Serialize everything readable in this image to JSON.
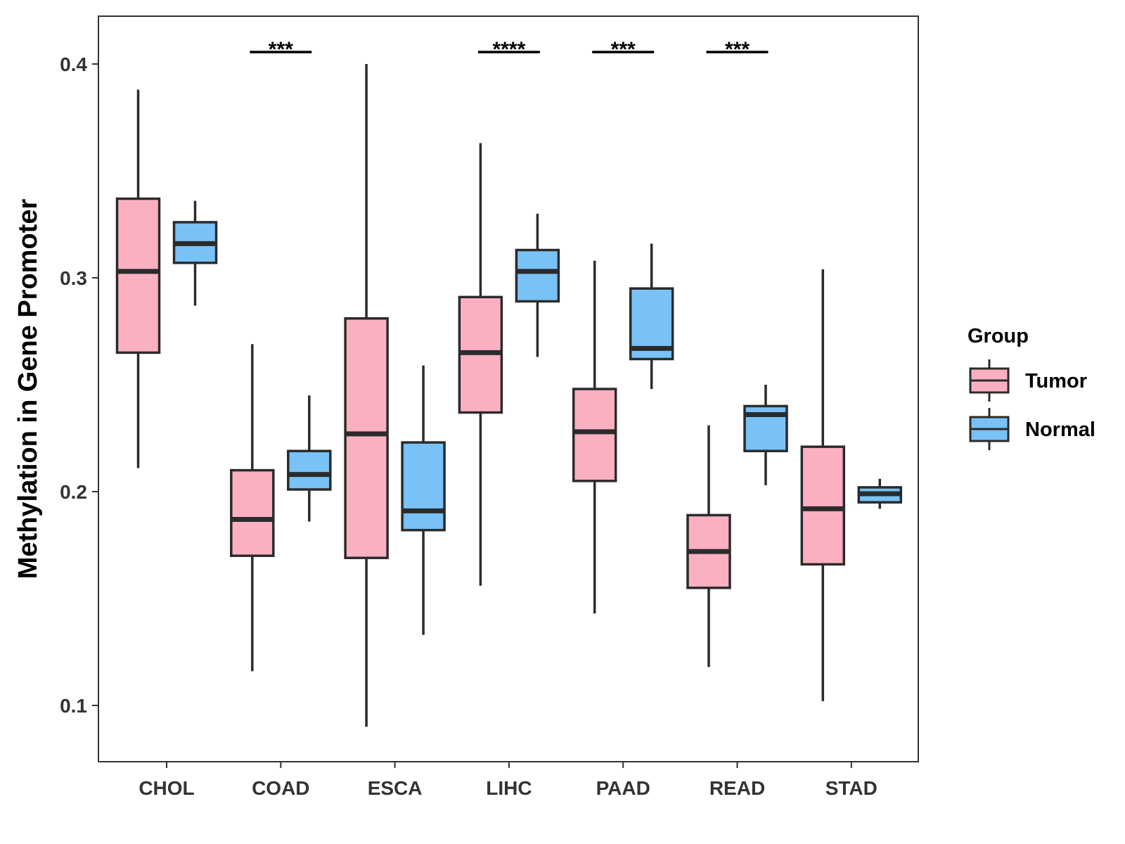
{
  "chart_data": {
    "type": "boxplot",
    "title": "",
    "xlabel": "",
    "ylabel": "Methylation in Gene Promoter",
    "ylim": [
      0.074,
      0.423
    ],
    "yticks": [
      0.1,
      0.2,
      0.3,
      0.4
    ],
    "ytick_labels": [
      "0.1",
      "0.2",
      "0.3",
      "0.4"
    ],
    "grid": false,
    "categories": [
      "CHOL",
      "COAD",
      "ESCA",
      "LIHC",
      "PAAD",
      "READ",
      "STAD"
    ],
    "legend": {
      "title": "Group",
      "position": "right",
      "entries": [
        {
          "label": "Tumor",
          "color": "#fbb0c2"
        },
        {
          "label": "Normal",
          "color": "#78c2f7"
        }
      ]
    },
    "series": [
      {
        "name": "Tumor",
        "color": "#fbb0c2",
        "boxes": [
          {
            "category": "CHOL",
            "whisker_low": 0.211,
            "q1": 0.265,
            "median": 0.303,
            "q3": 0.337,
            "whisker_high": 0.388
          },
          {
            "category": "COAD",
            "whisker_low": 0.116,
            "q1": 0.17,
            "median": 0.187,
            "q3": 0.21,
            "whisker_high": 0.269
          },
          {
            "category": "ESCA",
            "whisker_low": 0.09,
            "q1": 0.169,
            "median": 0.227,
            "q3": 0.281,
            "whisker_high": 0.4
          },
          {
            "category": "LIHC",
            "whisker_low": 0.156,
            "q1": 0.237,
            "median": 0.265,
            "q3": 0.291,
            "whisker_high": 0.363
          },
          {
            "category": "PAAD",
            "whisker_low": 0.143,
            "q1": 0.205,
            "median": 0.228,
            "q3": 0.248,
            "whisker_high": 0.308
          },
          {
            "category": "READ",
            "whisker_low": 0.118,
            "q1": 0.155,
            "median": 0.172,
            "q3": 0.189,
            "whisker_high": 0.231
          },
          {
            "category": "STAD",
            "whisker_low": 0.102,
            "q1": 0.166,
            "median": 0.192,
            "q3": 0.221,
            "whisker_high": 0.304
          }
        ]
      },
      {
        "name": "Normal",
        "color": "#78c2f7",
        "boxes": [
          {
            "category": "CHOL",
            "whisker_low": 0.287,
            "q1": 0.307,
            "median": 0.316,
            "q3": 0.326,
            "whisker_high": 0.336
          },
          {
            "category": "COAD",
            "whisker_low": 0.186,
            "q1": 0.201,
            "median": 0.208,
            "q3": 0.219,
            "whisker_high": 0.245
          },
          {
            "category": "ESCA",
            "whisker_low": 0.133,
            "q1": 0.182,
            "median": 0.191,
            "q3": 0.223,
            "whisker_high": 0.259
          },
          {
            "category": "LIHC",
            "whisker_low": 0.263,
            "q1": 0.289,
            "median": 0.303,
            "q3": 0.313,
            "whisker_high": 0.33
          },
          {
            "category": "PAAD",
            "whisker_low": 0.248,
            "q1": 0.262,
            "median": 0.267,
            "q3": 0.295,
            "whisker_high": 0.316
          },
          {
            "category": "READ",
            "whisker_low": 0.203,
            "q1": 0.219,
            "median": 0.236,
            "q3": 0.24,
            "whisker_high": 0.25
          },
          {
            "category": "STAD",
            "whisker_low": 0.192,
            "q1": 0.195,
            "median": 0.199,
            "q3": 0.202,
            "whisker_high": 0.206
          }
        ]
      }
    ],
    "significance": [
      {
        "category": "COAD",
        "label": "***"
      },
      {
        "category": "LIHC",
        "label": "****"
      },
      {
        "category": "PAAD",
        "label": "***"
      },
      {
        "category": "READ",
        "label": "***"
      }
    ]
  },
  "colors": {
    "tumor": "#fbb0c2",
    "normal": "#78c2f7",
    "stroke": "#2b2b2b",
    "axis": "#333333"
  }
}
